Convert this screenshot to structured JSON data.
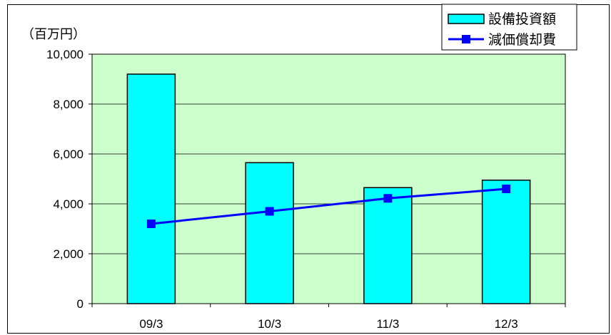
{
  "chart_data": {
    "type": "bar",
    "unit_label": "（百万円）",
    "categories": [
      "09/3",
      "10/3",
      "11/3",
      "12/3"
    ],
    "series": [
      {
        "name": "設備投資額",
        "kind": "bar",
        "values": [
          9200,
          5650,
          4650,
          4950
        ],
        "color": "#00ffff"
      },
      {
        "name": "減価償却費",
        "kind": "line",
        "values": [
          3200,
          3700,
          4220,
          4600
        ],
        "color": "#0000ff"
      }
    ],
    "ylim": [
      0,
      10000
    ],
    "yticks": [
      0,
      2000,
      4000,
      6000,
      8000,
      10000
    ],
    "ytick_labels": [
      "0",
      "2,000",
      "4,000",
      "6,000",
      "8,000",
      "10,000"
    ],
    "grid": true,
    "legend_position": "top-right",
    "plot_background": "#ccffcc"
  }
}
